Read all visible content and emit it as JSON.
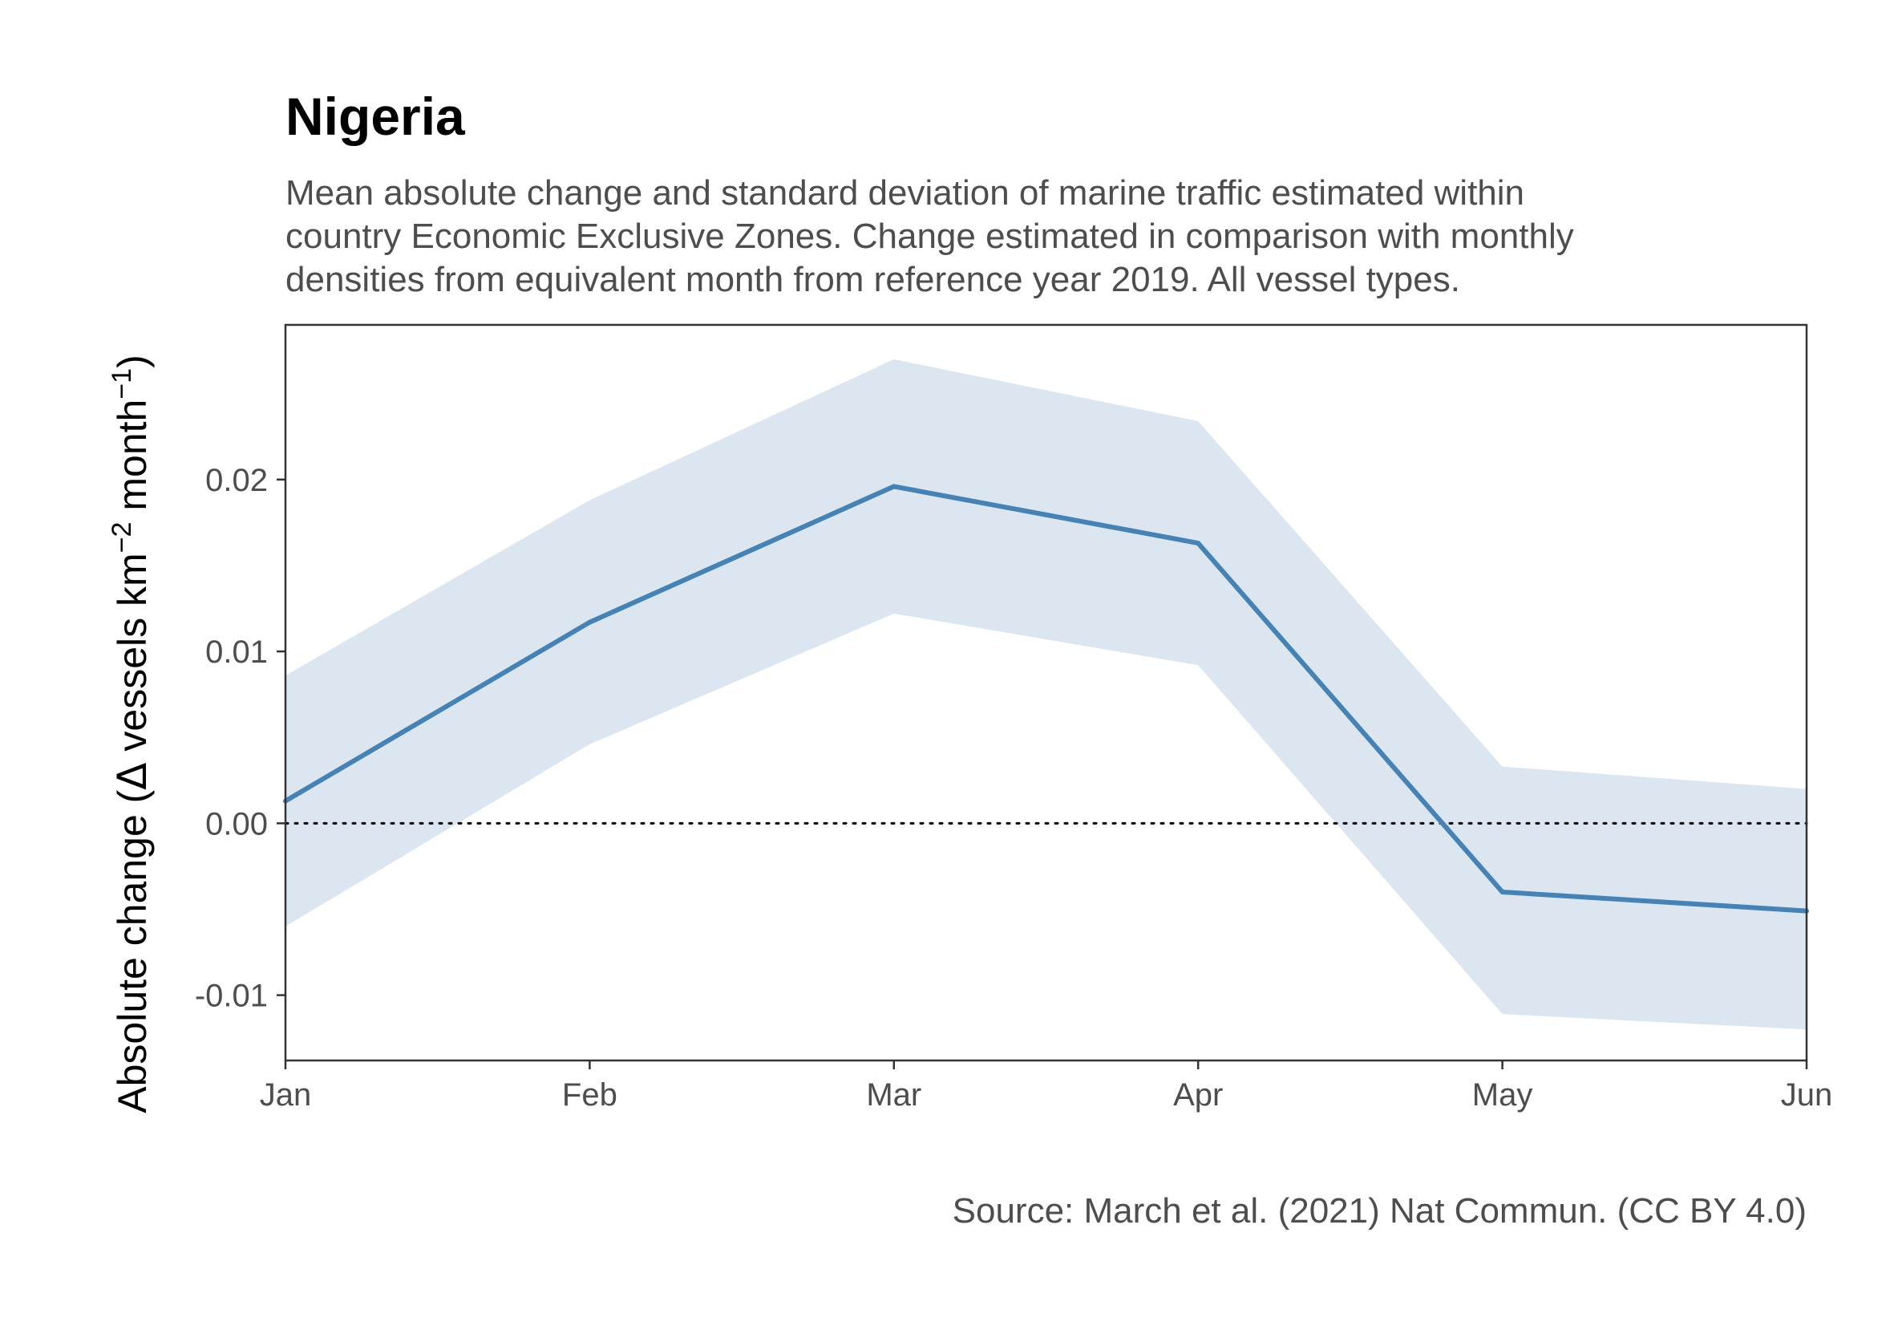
{
  "chart_data": {
    "type": "line",
    "title": "Nigeria",
    "subtitle_lines": [
      "Mean absolute change and standard deviation of marine traffic estimated within",
      "country Economic Exclusive Zones. Change estimated in comparison with monthly",
      "densities from equivalent month from reference year 2019. All vessel types."
    ],
    "ylabel": {
      "prefix": "Absolute change (",
      "delta": "Δ",
      "units": " vessels km",
      "exp1": "−2",
      "middle": " month",
      "exp2": "−1",
      "suffix": ")"
    },
    "caption": "Source: March et al. (2021) Nat Commun. (CC BY 4.0)",
    "categories": [
      "Jan",
      "Feb",
      "Mar",
      "Apr",
      "May",
      "Jun"
    ],
    "series": [
      {
        "values": [
          0.0013,
          0.0117,
          0.0196,
          0.0163,
          -0.004,
          -0.0051
        ],
        "lower": [
          -0.006,
          0.0046,
          0.0122,
          0.0092,
          -0.0111,
          -0.012
        ],
        "upper": [
          0.0086,
          0.0188,
          0.027,
          0.0234,
          0.0033,
          0.002
        ]
      }
    ],
    "ylim": [
      -0.0138,
      0.029
    ],
    "yticks": [
      -0.01,
      0.0,
      0.01,
      0.02
    ],
    "ytick_labels": [
      "-0.01",
      "0.00",
      "0.01",
      "0.02"
    ],
    "reference_line": 0,
    "grid": false,
    "colors": {
      "line": "#4682b4",
      "ribbon": "#dce6f1",
      "panel_border": "#333333",
      "reference": "#000000"
    }
  }
}
